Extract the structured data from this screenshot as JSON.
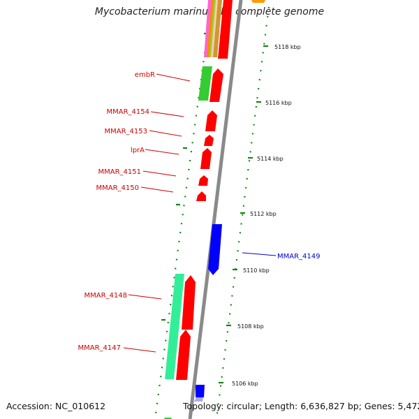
{
  "title": "Mycobacterium marinum M, complete genome",
  "footer": {
    "accession": "Accession: NC_010612",
    "info": "Topology: circular; Length: 6,636,827 bp; Genes: 5,472"
  },
  "colors": {
    "forward_gene": "#ff0000",
    "reverse_gene": "#0000ff",
    "label_forward": "#cc0000",
    "label_reverse": "#0000cc",
    "backbone": "#8a8a8a",
    "tick": "#118811"
  },
  "scale_labels": [
    {
      "label": "5118 kbp"
    },
    {
      "label": "5116 kbp"
    },
    {
      "label": "5114 kbp"
    },
    {
      "label": "5112 kbp"
    },
    {
      "label": "5110 kbp"
    },
    {
      "label": "5108 kbp"
    },
    {
      "label": "5106 kbp"
    }
  ],
  "gene_labels": [
    {
      "name": "embR",
      "strand": "forward"
    },
    {
      "name": "MMAR_4154",
      "strand": "forward"
    },
    {
      "name": "MMAR_4153",
      "strand": "forward"
    },
    {
      "name": "lprA",
      "strand": "forward"
    },
    {
      "name": "MMAR_4151",
      "strand": "forward"
    },
    {
      "name": "MMAR_4150",
      "strand": "forward"
    },
    {
      "name": "MMAR_4149",
      "strand": "reverse"
    },
    {
      "name": "MMAR_4148",
      "strand": "forward"
    },
    {
      "name": "MMAR_4147",
      "strand": "forward"
    }
  ]
}
